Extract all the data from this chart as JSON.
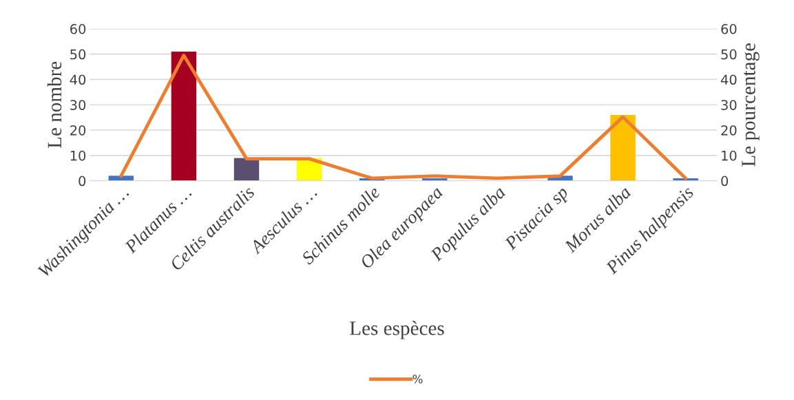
{
  "chart_data": {
    "type": "bar",
    "xlabel": "Les espèces",
    "ylabel": "Le nombre",
    "y2label": "Le pourcentage",
    "categories": [
      "Washingtonia …",
      "Platanus …",
      "Celtis australis",
      "Aesculus …",
      "Schinus molle",
      "Olea europaea",
      "Populus alba",
      "Pistacia sp",
      "Morus alba",
      "Pinus halpensis"
    ],
    "series": [
      {
        "values": [
          2,
          51,
          9,
          9,
          1,
          1,
          null,
          2,
          26,
          1
        ],
        "colors": [
          "#4472c4",
          "#a50021",
          "#5a4f6e",
          "#ffff00",
          "#4472c4",
          "#4472c4",
          "#4472c4",
          "#4472c4",
          "#ffc000",
          "#4472c4"
        ]
      },
      {
        "type": "line",
        "name": "%",
        "axis": "y2",
        "color": "#ed7d31",
        "values": [
          1.9,
          49.5,
          8.7,
          8.7,
          1.0,
          1.9,
          1.0,
          1.9,
          25.2,
          1.0
        ]
      }
    ],
    "ylim": [
      0,
      60
    ],
    "yticks": [
      0,
      10,
      20,
      30,
      40,
      50,
      60
    ],
    "y2lim": [
      0,
      60
    ],
    "y2ticks": [
      0,
      10,
      20,
      30,
      40,
      50,
      60
    ],
    "grid": "y",
    "legend": "bottom"
  }
}
